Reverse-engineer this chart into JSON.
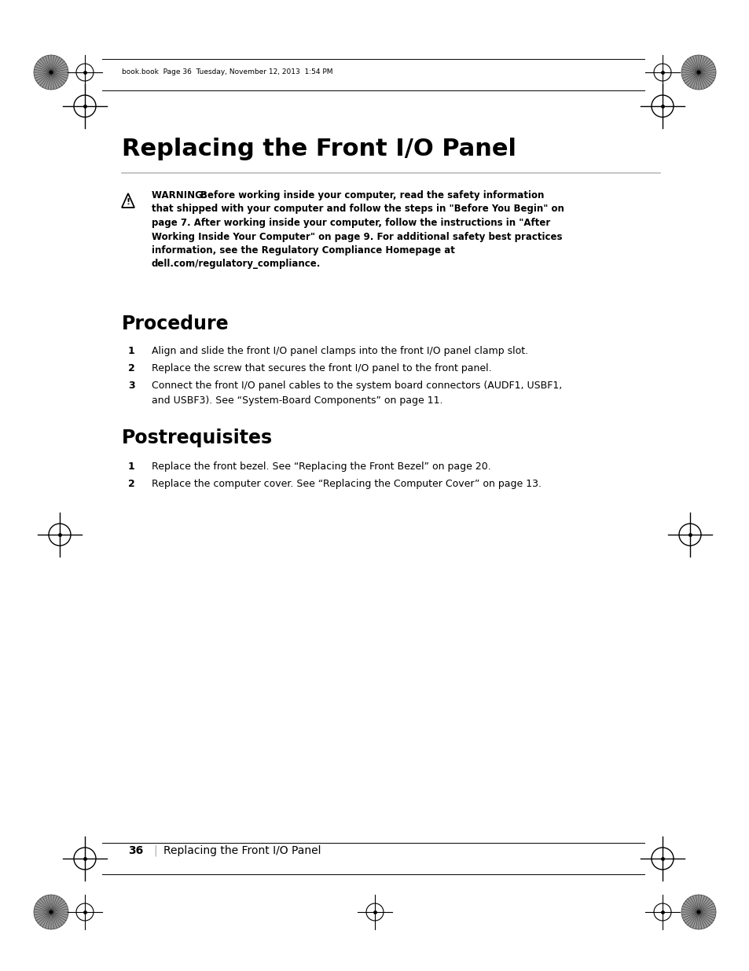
{
  "bg_color": "#ffffff",
  "page_width": 9.54,
  "page_height": 12.35,
  "dpi": 100,
  "header_text": "book.book  Page 36  Tuesday, November 12, 2013  1:54 PM",
  "title": "Replacing the Front I/O Panel",
  "warning_line1_bold": "WARNING:  ",
  "warning_line1_rest": "Before working inside your computer, read the safety information",
  "warning_lines": [
    "that shipped with your computer and follow the steps in \"Before You Begin\" on",
    "page 7. After working inside your computer, follow the instructions in \"After",
    "Working Inside Your Computer\" on page 9. For additional safety best practices",
    "information, see the Regulatory Compliance Homepage at",
    "dell.com/regulatory_compliance."
  ],
  "procedure_title": "Procedure",
  "procedure_steps": [
    "Align and slide the front I/O panel clamps into the front I/O panel clamp slot.",
    "Replace the screw that secures the front I/O panel to the front panel.",
    "Connect the front I/O panel cables to the system board connectors (AUDF1, USBF1,"
  ],
  "procedure_step3_line2": "and USBF3). See “System-Board Components” on page 11.",
  "postreq_title": "Postrequisites",
  "postreq_steps": [
    "Replace the front bezel. See “Replacing the Front Bezel” on page 20.",
    "Replace the computer cover. See “Replacing the Computer Cover” on page 13."
  ],
  "footer_page": "36",
  "footer_text": "Replacing the Front I/O Panel"
}
